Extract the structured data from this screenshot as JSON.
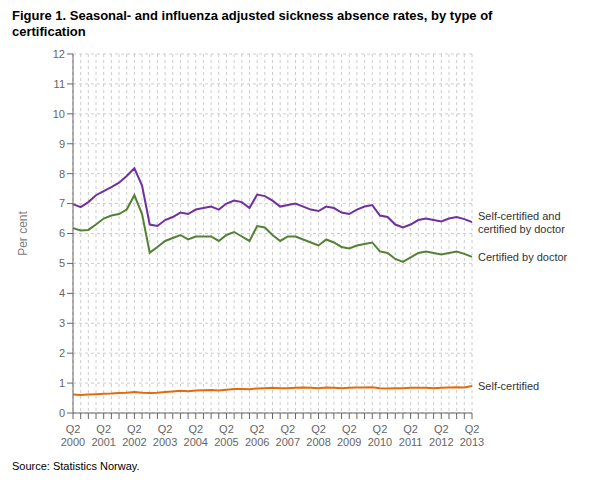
{
  "chart_data": {
    "type": "line",
    "title": "Figure 1. Seasonal- and influenza adjusted sickness absence rates, by type of\ncertification",
    "ylabel": "Per cent",
    "source": "Source: Statistics Norway.",
    "categories": [
      "Q2\n2000",
      null,
      null,
      null,
      "Q2\n2001",
      null,
      null,
      null,
      "Q2\n2002",
      null,
      null,
      null,
      "Q2\n2003",
      null,
      null,
      null,
      "Q2\n2004",
      null,
      null,
      null,
      "Q2\n2005",
      null,
      null,
      null,
      "Q2\n2006",
      null,
      null,
      null,
      "Q2\n2007",
      null,
      null,
      null,
      "Q2\n2008",
      null,
      null,
      null,
      "Q2\n2009",
      null,
      null,
      null,
      "Q2\n2010",
      null,
      null,
      null,
      "Q2\n2011",
      null,
      null,
      null,
      "Q2\n2012",
      null,
      null,
      null,
      "Q2\n2013"
    ],
    "series": [
      {
        "name": "Self-certified and\ncertified by doctor",
        "color": "#7030a0",
        "values": [
          6.98,
          6.88,
          7.05,
          7.28,
          7.42,
          7.55,
          7.7,
          7.92,
          8.18,
          7.6,
          6.3,
          6.25,
          6.45,
          6.55,
          6.7,
          6.65,
          6.8,
          6.85,
          6.9,
          6.8,
          7.0,
          7.1,
          7.05,
          6.85,
          7.3,
          7.25,
          7.1,
          6.9,
          6.95,
          7.0,
          6.9,
          6.8,
          6.75,
          6.9,
          6.85,
          6.7,
          6.65,
          6.8,
          6.9,
          6.95,
          6.6,
          6.55,
          6.3,
          6.2,
          6.3,
          6.45,
          6.5,
          6.45,
          6.4,
          6.5,
          6.55,
          6.48,
          6.38
        ]
      },
      {
        "name": "Certified by doctor",
        "color": "#548235",
        "values": [
          6.18,
          6.1,
          6.12,
          6.3,
          6.5,
          6.6,
          6.65,
          6.8,
          7.28,
          6.65,
          5.36,
          5.55,
          5.75,
          5.85,
          5.95,
          5.8,
          5.9,
          5.9,
          5.9,
          5.75,
          5.95,
          6.05,
          5.9,
          5.75,
          6.25,
          6.2,
          5.95,
          5.75,
          5.9,
          5.9,
          5.8,
          5.7,
          5.6,
          5.8,
          5.7,
          5.55,
          5.5,
          5.6,
          5.65,
          5.7,
          5.4,
          5.35,
          5.15,
          5.05,
          5.2,
          5.35,
          5.4,
          5.35,
          5.3,
          5.35,
          5.4,
          5.32,
          5.22
        ]
      },
      {
        "name": "Self-certified",
        "color": "#e36c09",
        "values": [
          0.62,
          0.6,
          0.62,
          0.63,
          0.64,
          0.65,
          0.67,
          0.68,
          0.7,
          0.68,
          0.67,
          0.68,
          0.7,
          0.72,
          0.74,
          0.73,
          0.75,
          0.76,
          0.77,
          0.75,
          0.78,
          0.8,
          0.8,
          0.79,
          0.82,
          0.83,
          0.84,
          0.83,
          0.83,
          0.84,
          0.85,
          0.84,
          0.83,
          0.85,
          0.84,
          0.83,
          0.84,
          0.85,
          0.85,
          0.86,
          0.83,
          0.82,
          0.83,
          0.83,
          0.84,
          0.84,
          0.84,
          0.83,
          0.84,
          0.85,
          0.86,
          0.85,
          0.9
        ]
      }
    ],
    "ylim": [
      0,
      12
    ],
    "yticks": [
      0,
      1,
      2,
      3,
      4,
      5,
      6,
      7,
      8,
      9,
      10,
      11,
      12
    ],
    "grid": true
  }
}
